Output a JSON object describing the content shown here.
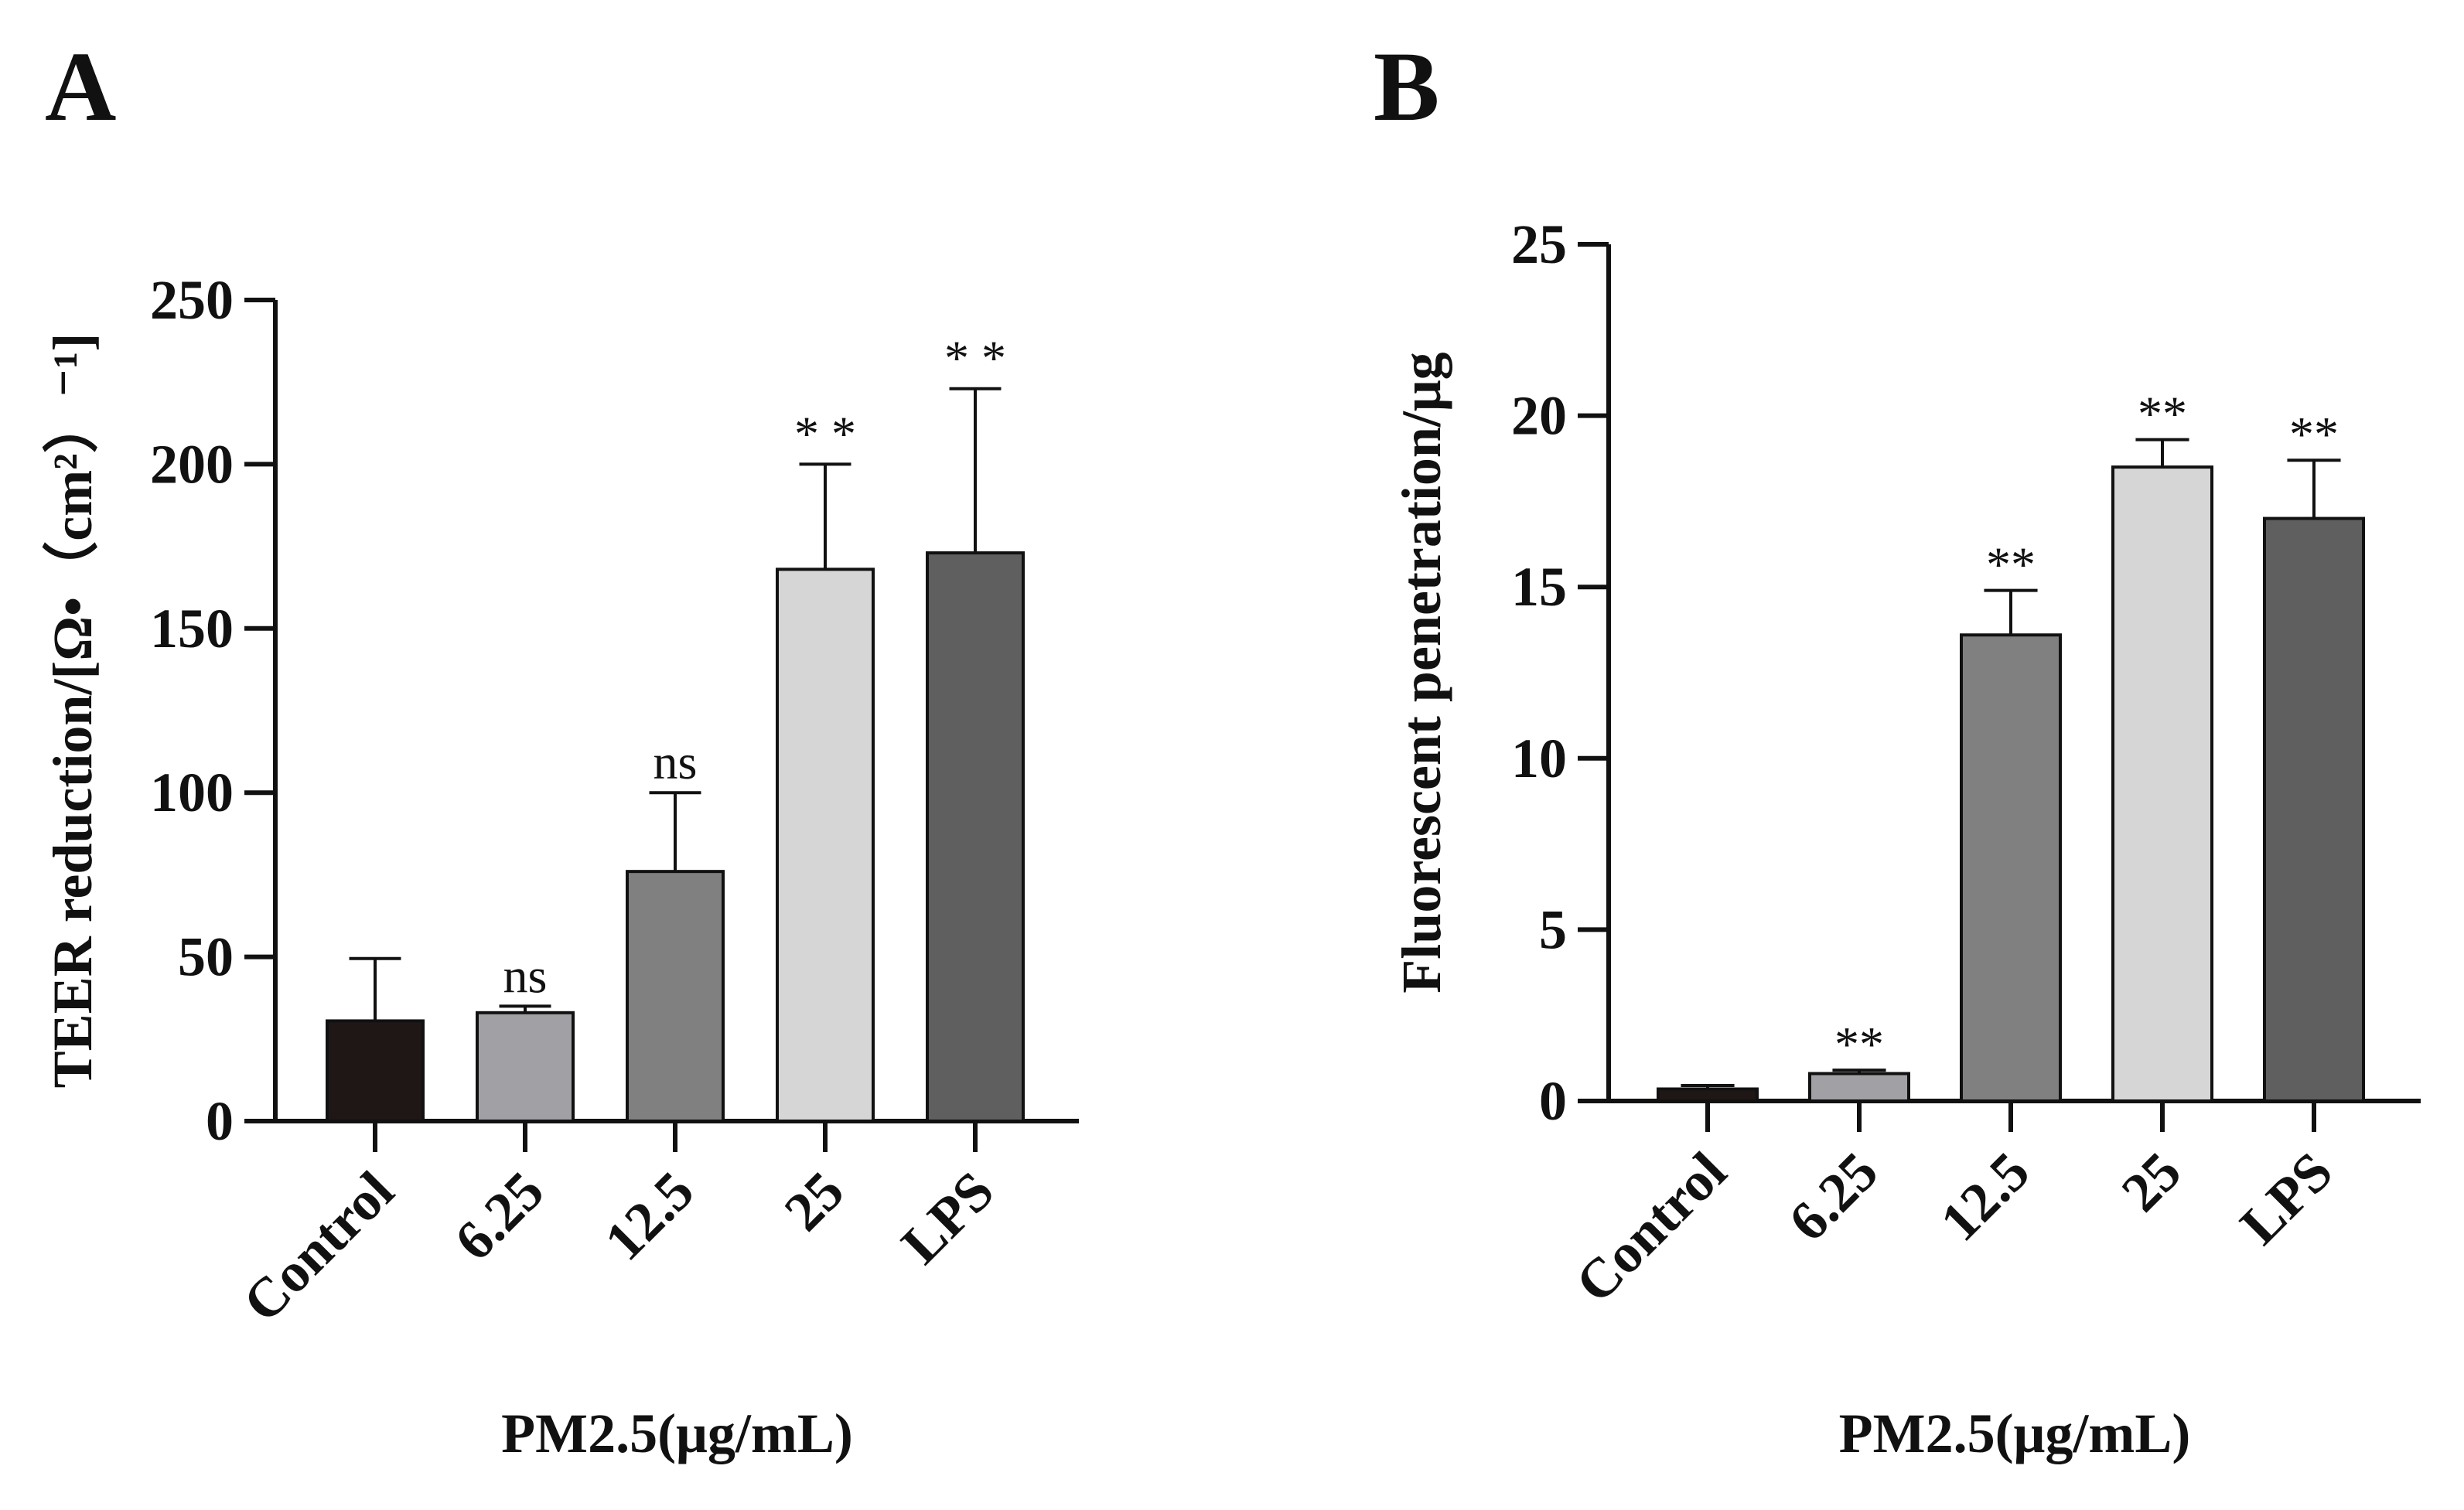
{
  "chart_data": [
    {
      "type": "bar",
      "panel_label": "A",
      "categories": [
        "Control",
        "6.25",
        "12.5",
        "25",
        "LPS"
      ],
      "values": [
        30.5,
        33,
        76,
        168,
        173
      ],
      "errors": [
        19,
        2,
        24,
        32,
        50
      ],
      "significance": [
        "",
        "ns",
        "ns",
        "* *",
        "* *"
      ],
      "bar_colors": [
        "#1f1716",
        "#a1a0a4",
        "#808080",
        "#d6d6d6",
        "#5f5f5f"
      ],
      "ylabel": "TEER reduction/[Ω•（cm²）⁻¹]",
      "xlabel": "PM2.5(μg/mL)",
      "ylim": [
        0,
        250
      ],
      "yticks": [
        "0",
        "50",
        "100",
        "150",
        "200",
        "250"
      ]
    },
    {
      "type": "bar",
      "panel_label": "B",
      "categories": [
        "Control",
        "6.25",
        "12.5",
        "25",
        "LPS"
      ],
      "values": [
        0.35,
        0.8,
        13.6,
        18.5,
        17
      ],
      "errors": [
        0.1,
        0.1,
        1.3,
        0.8,
        1.7
      ],
      "significance": [
        "",
        "**",
        "**",
        "**",
        "**"
      ],
      "bar_colors": [
        "#1f1716",
        "#a1a0a4",
        "#808080",
        "#d6d6d6",
        "#5f5f5f"
      ],
      "ylabel": "Fluorescent penetration/μg",
      "xlabel": "PM2.5(μg/mL)",
      "ylim": [
        0,
        25
      ],
      "yticks": [
        "0",
        "5",
        "10",
        "15",
        "20",
        "25"
      ]
    }
  ]
}
